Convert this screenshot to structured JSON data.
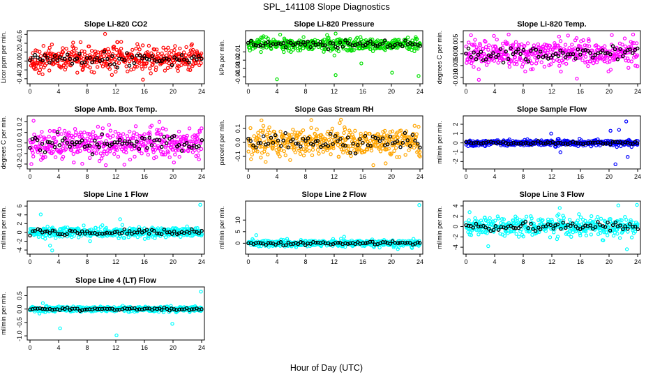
{
  "figure": {
    "title": "SPL_141108  Slope Diagnostics",
    "xlabel": "Hour of Day (UTC)"
  },
  "chart_data": [
    {
      "type": "scatter",
      "title": "Slope Li-820 CO2",
      "ylabel": "Licor ppm per min.",
      "xlim": [
        0,
        24
      ],
      "ylim": [
        -0.45,
        0.62
      ],
      "xticks": [
        0,
        4,
        8,
        12,
        16,
        20,
        24
      ],
      "yticks": [
        -0.4,
        -0.2,
        0.0,
        0.2,
        0.4,
        0.6
      ],
      "ytick_labels": [
        "-0.4",
        "-0.2",
        "0.0",
        "0.2",
        "0.4",
        "0.6"
      ],
      "color": "#ff0000",
      "center": 0.05,
      "spread": 0.14,
      "outliers": [
        [
          10.5,
          0.61
        ],
        [
          15.8,
          -0.42
        ],
        [
          22.8,
          0.25
        ]
      ]
    },
    {
      "type": "scatter",
      "title": "Slope Li-820 Pressure",
      "ylabel": "kPa per min.",
      "xlim": [
        0,
        24
      ],
      "ylim": [
        -0.045,
        0.012
      ],
      "xticks": [
        0,
        4,
        8,
        12,
        16,
        20,
        24
      ],
      "yticks": [
        -0.04,
        -0.03,
        -0.02,
        -0.01
      ],
      "ytick_labels": [
        "-0.04",
        "-0.03",
        "-0.02",
        "-0.01"
      ],
      "color": "#00e000",
      "center": -0.001,
      "spread": 0.004,
      "outliers": [
        [
          4.0,
          -0.043
        ],
        [
          12.2,
          -0.038
        ],
        [
          15.8,
          -0.024
        ],
        [
          20.1,
          -0.035
        ],
        [
          23.8,
          -0.039
        ]
      ]
    },
    {
      "type": "scatter",
      "title": "Slope Li-820 Temp.",
      "ylabel": "degrees C per min.",
      "xlim": [
        0,
        24
      ],
      "ylim": [
        -0.0115,
        0.0085
      ],
      "xticks": [
        0,
        4,
        8,
        12,
        16,
        20,
        24
      ],
      "yticks": [
        -0.01,
        -0.005,
        0.0,
        0.005
      ],
      "ytick_labels": [
        "-0.010",
        "-0.005",
        "0.000",
        "0.005"
      ],
      "color": "#ff00ff",
      "center": 0.0,
      "spread": 0.003,
      "outliers": [
        [
          1.8,
          -0.011
        ],
        [
          3.9,
          0.0075
        ],
        [
          13.0,
          0.0072
        ],
        [
          15.5,
          -0.0105
        ]
      ]
    },
    {
      "type": "scatter",
      "title": "Slope Amb. Box Temp.",
      "ylabel": "degrees C per min.",
      "xlim": [
        0,
        24
      ],
      "ylim": [
        -0.22,
        0.23
      ],
      "xticks": [
        0,
        4,
        8,
        12,
        16,
        20,
        24
      ],
      "yticks": [
        -0.2,
        -0.1,
        0.0,
        0.1,
        0.2
      ],
      "ytick_labels": [
        "-0.2",
        "-0.1",
        "0.0",
        "0.1",
        "0.2"
      ],
      "color": "#ff00ff",
      "center": 0.0,
      "spread": 0.07,
      "outliers": [
        [
          0.5,
          0.21
        ],
        [
          0.2,
          -0.2
        ],
        [
          18.1,
          0.2
        ]
      ]
    },
    {
      "type": "scatter",
      "title": "Slope Gas Stream RH",
      "ylabel": "percent per min.",
      "xlim": [
        0,
        24
      ],
      "ylim": [
        -0.17,
        0.17
      ],
      "xticks": [
        0,
        4,
        8,
        12,
        16,
        20,
        24
      ],
      "yticks": [
        -0.1,
        0.0,
        0.1
      ],
      "ytick_labels": [
        "-0.1",
        "0.0",
        "0.1"
      ],
      "color": "#ffa500",
      "center": 0.0,
      "spread": 0.055,
      "outliers": [
        [
          8.8,
          0.16
        ],
        [
          19.2,
          -0.15
        ]
      ]
    },
    {
      "type": "scatter",
      "title": "Slope Sample Flow",
      "ylabel": "ml/min per min.",
      "xlim": [
        0,
        24
      ],
      "ylim": [
        -2.5,
        2.6
      ],
      "xticks": [
        0,
        4,
        8,
        12,
        16,
        20,
        24
      ],
      "yticks": [
        -2,
        -1,
        0,
        1,
        2
      ],
      "ytick_labels": [
        "-2",
        "-1",
        "0",
        "1",
        "2"
      ],
      "color": "#0000ff",
      "center": 0.0,
      "spread": 0.15,
      "outliers": [
        [
          20.9,
          -2.3
        ],
        [
          22.4,
          2.3
        ],
        [
          22.6,
          -1.5
        ],
        [
          21.4,
          1.4
        ],
        [
          20.2,
          1.3
        ],
        [
          13.2,
          -1.0
        ],
        [
          11.9,
          1.0
        ]
      ]
    },
    {
      "type": "scatter",
      "title": "Slope Line 1 Flow",
      "ylabel": "ml/min per min.",
      "xlim": [
        0,
        24
      ],
      "ylim": [
        -4.3,
        6.5
      ],
      "xticks": [
        0,
        4,
        8,
        12,
        16,
        20,
        24
      ],
      "yticks": [
        -4,
        -2,
        0,
        2,
        4,
        6
      ],
      "ytick_labels": [
        "-4",
        "-2",
        "0",
        "2",
        "4",
        "6"
      ],
      "color": "#00ffff",
      "center": 0.0,
      "spread": 0.6,
      "outliers": [
        [
          23.8,
          6.3
        ],
        [
          1.5,
          4.1
        ],
        [
          3.1,
          -4.1
        ],
        [
          12.6,
          3.0
        ],
        [
          2.8,
          -3.0
        ],
        [
          8.4,
          -2.0
        ]
      ]
    },
    {
      "type": "scatter",
      "title": "Slope Line 2 Flow",
      "ylabel": "ml/min per min.",
      "xlim": [
        0,
        24
      ],
      "ylim": [
        -3.5,
        17.0
      ],
      "xticks": [
        0,
        4,
        8,
        12,
        16,
        20,
        24
      ],
      "yticks": [
        0,
        5,
        10
      ],
      "ytick_labels": [
        "0",
        "5",
        "10"
      ],
      "color": "#00ffff",
      "center": 0.0,
      "spread": 0.7,
      "outliers": [
        [
          23.9,
          16.5
        ],
        [
          1.1,
          3.5
        ],
        [
          20.9,
          -2.5
        ],
        [
          13.4,
          2.8
        ]
      ]
    },
    {
      "type": "scatter",
      "title": "Slope Line 3 Flow",
      "ylabel": "ml/min per min.",
      "xlim": [
        0,
        24
      ],
      "ylim": [
        -4.8,
        4.4
      ],
      "xticks": [
        0,
        4,
        8,
        12,
        16,
        20,
        24
      ],
      "yticks": [
        -4,
        -2,
        0,
        2,
        4
      ],
      "ytick_labels": [
        "-4",
        "-2",
        "0",
        "2",
        "4"
      ],
      "color": "#00ffff",
      "center": 0.0,
      "spread": 0.9,
      "outliers": [
        [
          23.9,
          4.2
        ],
        [
          21.3,
          4.1
        ],
        [
          13.1,
          3.6
        ],
        [
          0.5,
          2.8
        ],
        [
          22.5,
          -4.4
        ],
        [
          3.1,
          -3.8
        ],
        [
          15.8,
          2.4
        ]
      ]
    },
    {
      "type": "scatter",
      "title": "Slope Line 4 (LT) Flow",
      "ylabel": "ml/min per min.",
      "xlim": [
        0,
        24
      ],
      "ylim": [
        -1.05,
        0.72
      ],
      "xticks": [
        0,
        4,
        8,
        12,
        16,
        20,
        24
      ],
      "yticks": [
        -1.0,
        -0.5,
        0.0,
        0.5
      ],
      "ytick_labels": [
        "-1.0",
        "-0.5",
        "0.0",
        "0.5"
      ],
      "color": "#00ffff",
      "center": 0.0,
      "spread": 0.05,
      "outliers": [
        [
          23.9,
          0.65
        ],
        [
          12.1,
          -0.98
        ],
        [
          4.2,
          -0.72
        ],
        [
          19.9,
          -0.55
        ],
        [
          1.8,
          0.22
        ]
      ]
    }
  ]
}
